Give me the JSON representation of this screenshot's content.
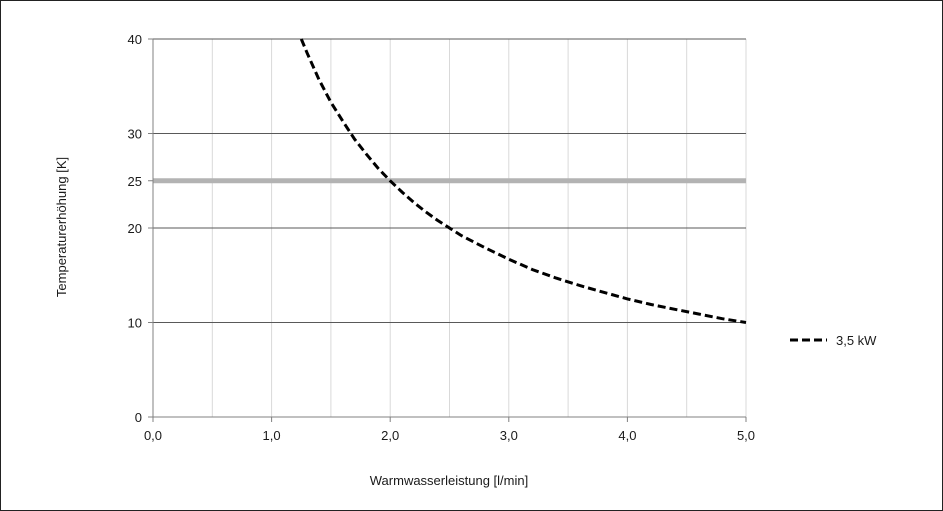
{
  "chart_data": {
    "type": "line",
    "xlabel": "Warmwasserleistung [l/min]",
    "ylabel": "Temperaturerhöhung [K]",
    "xlim": [
      0,
      5
    ],
    "ylim": [
      0,
      40
    ],
    "x_ticks": [
      0,
      1,
      2,
      3,
      4,
      5
    ],
    "x_tick_labels": [
      "0,0",
      "1,0",
      "2,0",
      "3,0",
      "4,0",
      "5,0"
    ],
    "x_minor_grid_step": 0.5,
    "y_ticks": [
      0,
      10,
      20,
      25,
      30,
      40
    ],
    "y_tick_labels": [
      "0",
      "10",
      "20",
      "25",
      "30",
      "40"
    ],
    "highlight_line": {
      "y": 25,
      "color": "#b3b3b3"
    },
    "grid": {
      "vertical_color": "#d9d9d9",
      "horizontal_color": "#595959"
    },
    "legend_position": "right",
    "series": [
      {
        "name": "3,5 kW",
        "style": "dashed",
        "color": "#000000",
        "x": [
          1.25,
          1.3,
          1.4,
          1.5,
          1.6,
          1.7,
          1.8,
          1.9,
          2.0,
          2.1,
          2.2,
          2.3,
          2.4,
          2.5,
          2.6,
          2.8,
          3.0,
          3.2,
          3.4,
          3.6,
          3.8,
          4.0,
          4.2,
          4.4,
          4.6,
          4.8,
          5.0
        ],
        "y": [
          40.0,
          38.5,
          35.7,
          33.3,
          31.3,
          29.4,
          27.8,
          26.3,
          25.0,
          23.8,
          22.7,
          21.7,
          20.8,
          20.0,
          19.2,
          17.9,
          16.7,
          15.6,
          14.7,
          13.9,
          13.2,
          12.5,
          11.9,
          11.4,
          10.9,
          10.4,
          10.0
        ]
      }
    ]
  }
}
